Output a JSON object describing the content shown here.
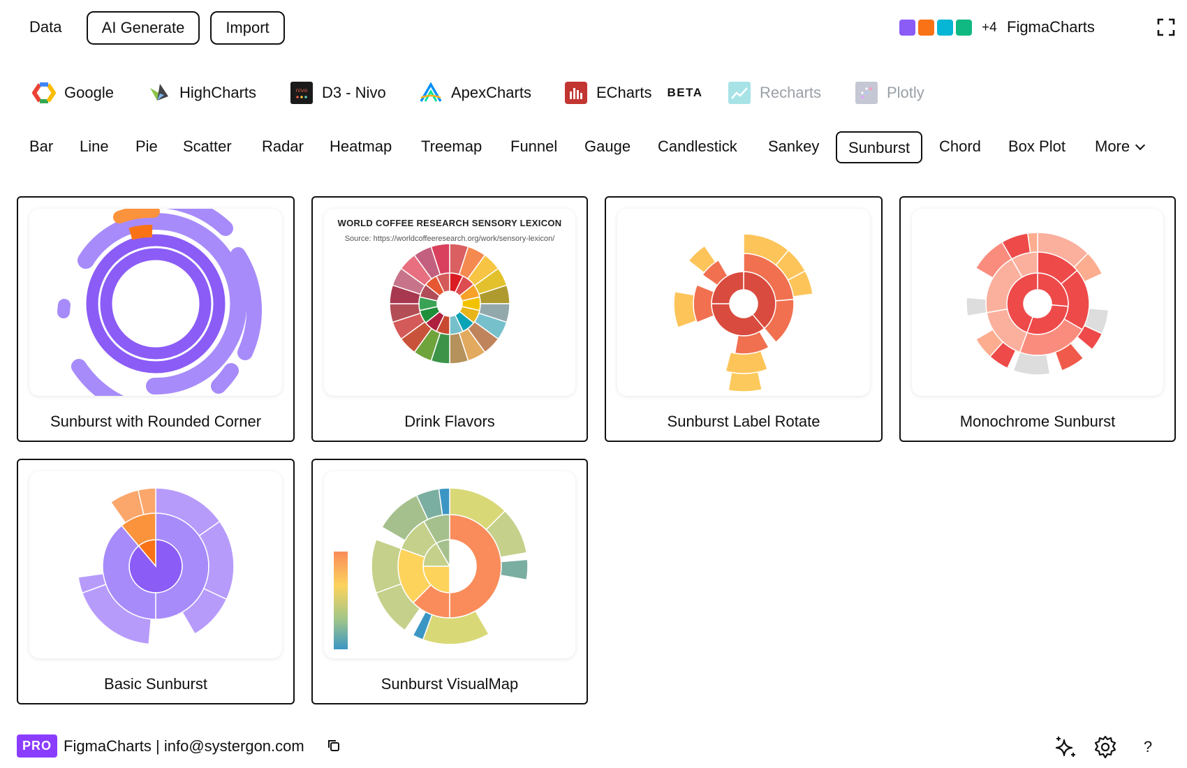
{
  "topbar": {
    "data_label": "Data",
    "ai_label": "AI Generate",
    "import_label": "Import",
    "swatches": [
      "#8b5cf6",
      "#f97316",
      "#06b6d4",
      "#10b981"
    ],
    "more_swatches": "+4",
    "brand": "FigmaCharts"
  },
  "libraries": [
    {
      "label": "Google",
      "icon": "google-icon"
    },
    {
      "label": "HighCharts",
      "icon": "highcharts-icon"
    },
    {
      "label": "D3 - Nivo",
      "icon": "nivo-icon"
    },
    {
      "label": "ApexCharts",
      "icon": "apexcharts-icon"
    },
    {
      "label": "ECharts",
      "icon": "echarts-icon",
      "badge": "BETA"
    },
    {
      "label": "Recharts",
      "icon": "recharts-icon"
    },
    {
      "label": "Plotly",
      "icon": "plotly-icon"
    }
  ],
  "tabs": [
    "Bar",
    "Line",
    "Pie",
    "Scatter",
    "Radar",
    "Heatmap",
    "Treemap",
    "Funnel",
    "Gauge",
    "Candlestick",
    "Sankey",
    "Sunburst",
    "Chord",
    "Box Plot",
    "More"
  ],
  "active_tab": "Sunburst",
  "cards": [
    {
      "title": "Sunburst with Rounded Corner"
    },
    {
      "title": "Drink Flavors",
      "chart_title": "WORLD COFFEE RESEARCH SENSORY LEXICON",
      "chart_source": "Source: https://worldcoffeeresearch.org/work/sensory-lexicon/"
    },
    {
      "title": "Sunburst Label Rotate"
    },
    {
      "title": "Monochrome Sunburst"
    },
    {
      "title": "Basic Sunburst"
    },
    {
      "title": "Sunburst VisualMap"
    }
  ],
  "footer": {
    "pro_badge": "PRO",
    "text": "FigmaCharts | info@systergon.com",
    "help": "?"
  }
}
